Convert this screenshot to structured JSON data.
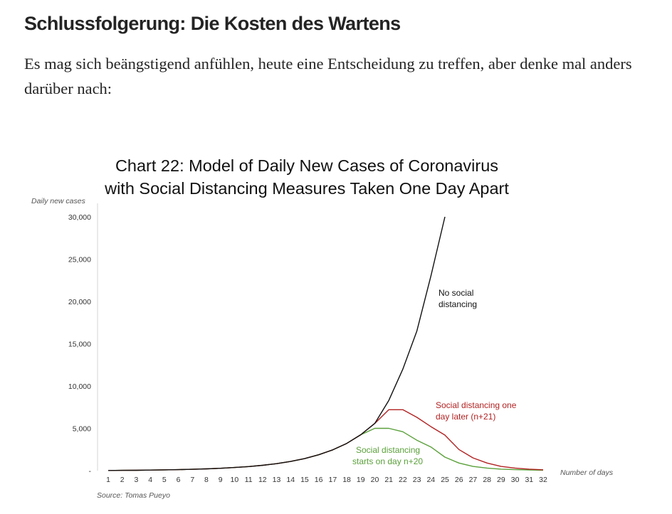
{
  "article": {
    "heading": "Schlussfolgerung: Die Kosten des Wartens",
    "paragraph": "Es mag sich beängstigend anfühlen, heute eine Entscheidung zu treffen, aber denke mal anders darüber nach:"
  },
  "chart_data": {
    "type": "line",
    "title_line1": "Chart 22: Model of Daily New Cases of Coronavirus",
    "title_line2": "with Social Distancing Measures Taken One Day Apart",
    "ylabel": "Daily new cases",
    "xlabel": "Number of days",
    "source": "Source: Tomas Pueyo",
    "ylim": [
      0,
      30000
    ],
    "xlim": [
      1,
      32
    ],
    "yticks": [
      "-",
      "5,000",
      "10,000",
      "15,000",
      "20,000",
      "25,000",
      "30,000"
    ],
    "x": [
      1,
      2,
      3,
      4,
      5,
      6,
      7,
      8,
      9,
      10,
      11,
      12,
      13,
      14,
      15,
      16,
      17,
      18,
      19,
      20,
      21,
      22,
      23,
      24,
      25,
      26,
      27,
      28,
      29,
      30,
      31,
      32
    ],
    "series": [
      {
        "name": "No social distancing",
        "color": "#111111",
        "x": [
          1,
          2,
          3,
          4,
          5,
          6,
          7,
          8,
          9,
          10,
          11,
          12,
          13,
          14,
          15,
          16,
          17,
          18,
          19,
          20,
          21,
          22,
          23,
          24,
          25
        ],
        "values": [
          20,
          30,
          45,
          65,
          90,
          120,
          160,
          210,
          280,
          370,
          480,
          630,
          820,
          1080,
          1420,
          1870,
          2450,
          3220,
          4240,
          5580,
          8300,
          12000,
          16500,
          23000,
          30000
        ]
      },
      {
        "name": "Social distancing one day later (n+21)",
        "label_line1": "Social distancing one",
        "label_line2": "day later (n+21)",
        "color": "#b22222",
        "x": [
          1,
          2,
          3,
          4,
          5,
          6,
          7,
          8,
          9,
          10,
          11,
          12,
          13,
          14,
          15,
          16,
          17,
          18,
          19,
          20,
          21,
          22,
          23,
          24,
          25,
          26,
          27,
          28,
          29,
          30,
          31,
          32
        ],
        "values": [
          20,
          30,
          45,
          65,
          90,
          120,
          160,
          210,
          280,
          370,
          480,
          630,
          820,
          1080,
          1420,
          1870,
          2450,
          3220,
          4240,
          5580,
          7200,
          7200,
          6300,
          5200,
          4200,
          2500,
          1500,
          900,
          500,
          300,
          180,
          100
        ]
      },
      {
        "name": "Social distancing starts on day n+20",
        "label_line1": "Social distancing",
        "label_line2": "starts on day n+20",
        "color": "#5aa03a",
        "x": [
          1,
          2,
          3,
          4,
          5,
          6,
          7,
          8,
          9,
          10,
          11,
          12,
          13,
          14,
          15,
          16,
          17,
          18,
          19,
          20,
          21,
          22,
          23,
          24,
          25,
          26,
          27,
          28,
          29,
          30,
          31,
          32
        ],
        "values": [
          20,
          30,
          45,
          65,
          90,
          120,
          160,
          210,
          280,
          370,
          480,
          630,
          820,
          1080,
          1420,
          1870,
          2450,
          3220,
          4240,
          5000,
          5000,
          4600,
          3600,
          2800,
          1600,
          900,
          500,
          300,
          180,
          120,
          80,
          50
        ]
      }
    ]
  }
}
